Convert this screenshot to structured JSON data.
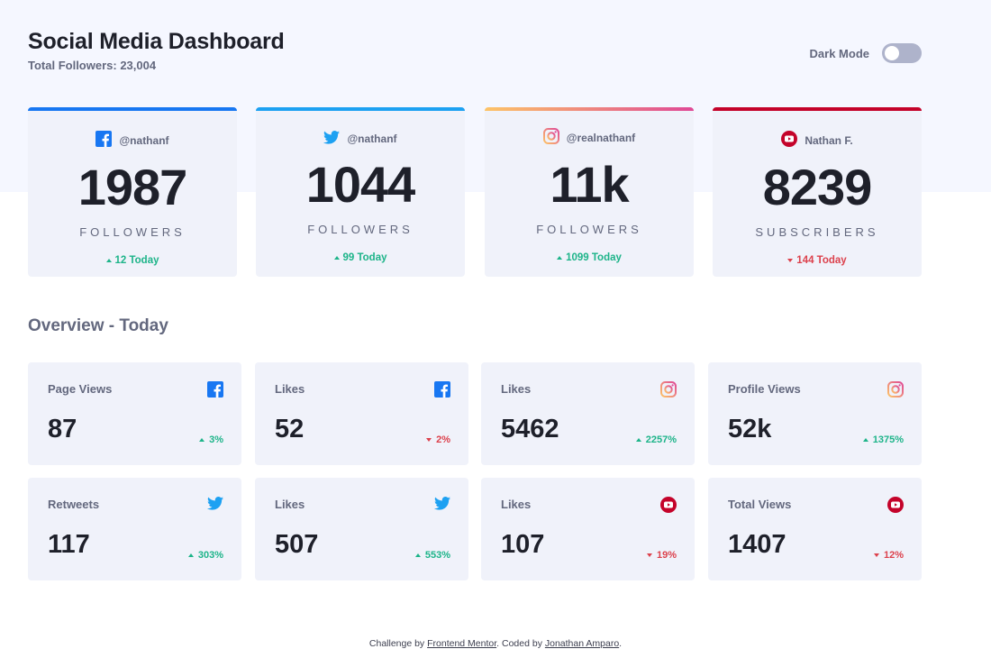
{
  "header": {
    "title": "Social Media Dashboard",
    "total_followers": "Total Followers: 23,004",
    "dark_mode_label": "Dark Mode",
    "dark_mode_on": false
  },
  "colors": {
    "facebook": "#1877f2",
    "twitter": "#1da1f2",
    "instagram_start": "#fdc468",
    "instagram_end": "#df4996",
    "youtube": "#c4032a",
    "up": "#1db489",
    "down": "#dc414c"
  },
  "cards": [
    {
      "platform": "facebook",
      "icon": "facebook-icon",
      "handle": "@nathanf",
      "count": "1987",
      "unit": "FOLLOWERS",
      "change": "12 Today",
      "direction": "up"
    },
    {
      "platform": "twitter",
      "icon": "twitter-icon",
      "handle": "@nathanf",
      "count": "1044",
      "unit": "FOLLOWERS",
      "change": "99 Today",
      "direction": "up"
    },
    {
      "platform": "instagram",
      "icon": "instagram-icon",
      "handle": "@realnathanf",
      "count": "11k",
      "unit": "FOLLOWERS",
      "change": "1099 Today",
      "direction": "up"
    },
    {
      "platform": "youtube",
      "icon": "youtube-icon",
      "handle": "Nathan F.",
      "count": "8239",
      "unit": "SUBSCRIBERS",
      "change": "144 Today",
      "direction": "down"
    }
  ],
  "overview": {
    "title": "Overview - Today",
    "items": [
      {
        "label": "Page Views",
        "platform": "facebook",
        "icon": "facebook-icon",
        "value": "87",
        "change": "3%",
        "direction": "up"
      },
      {
        "label": "Likes",
        "platform": "facebook",
        "icon": "facebook-icon",
        "value": "52",
        "change": "2%",
        "direction": "down"
      },
      {
        "label": "Likes",
        "platform": "instagram",
        "icon": "instagram-icon",
        "value": "5462",
        "change": "2257%",
        "direction": "up"
      },
      {
        "label": "Profile Views",
        "platform": "instagram",
        "icon": "instagram-icon",
        "value": "52k",
        "change": "1375%",
        "direction": "up"
      },
      {
        "label": "Retweets",
        "platform": "twitter",
        "icon": "twitter-icon",
        "value": "117",
        "change": "303%",
        "direction": "up"
      },
      {
        "label": "Likes",
        "platform": "twitter",
        "icon": "twitter-icon",
        "value": "507",
        "change": "553%",
        "direction": "up"
      },
      {
        "label": "Likes",
        "platform": "youtube",
        "icon": "youtube-icon",
        "value": "107",
        "change": "19%",
        "direction": "down"
      },
      {
        "label": "Total Views",
        "platform": "youtube",
        "icon": "youtube-icon",
        "value": "1407",
        "change": "12%",
        "direction": "down"
      }
    ]
  },
  "footer": {
    "prefix": "Challenge by ",
    "link1": "Frontend Mentor",
    "middle": ". Coded by ",
    "link2": "Jonathan Amparo",
    "suffix": "."
  }
}
